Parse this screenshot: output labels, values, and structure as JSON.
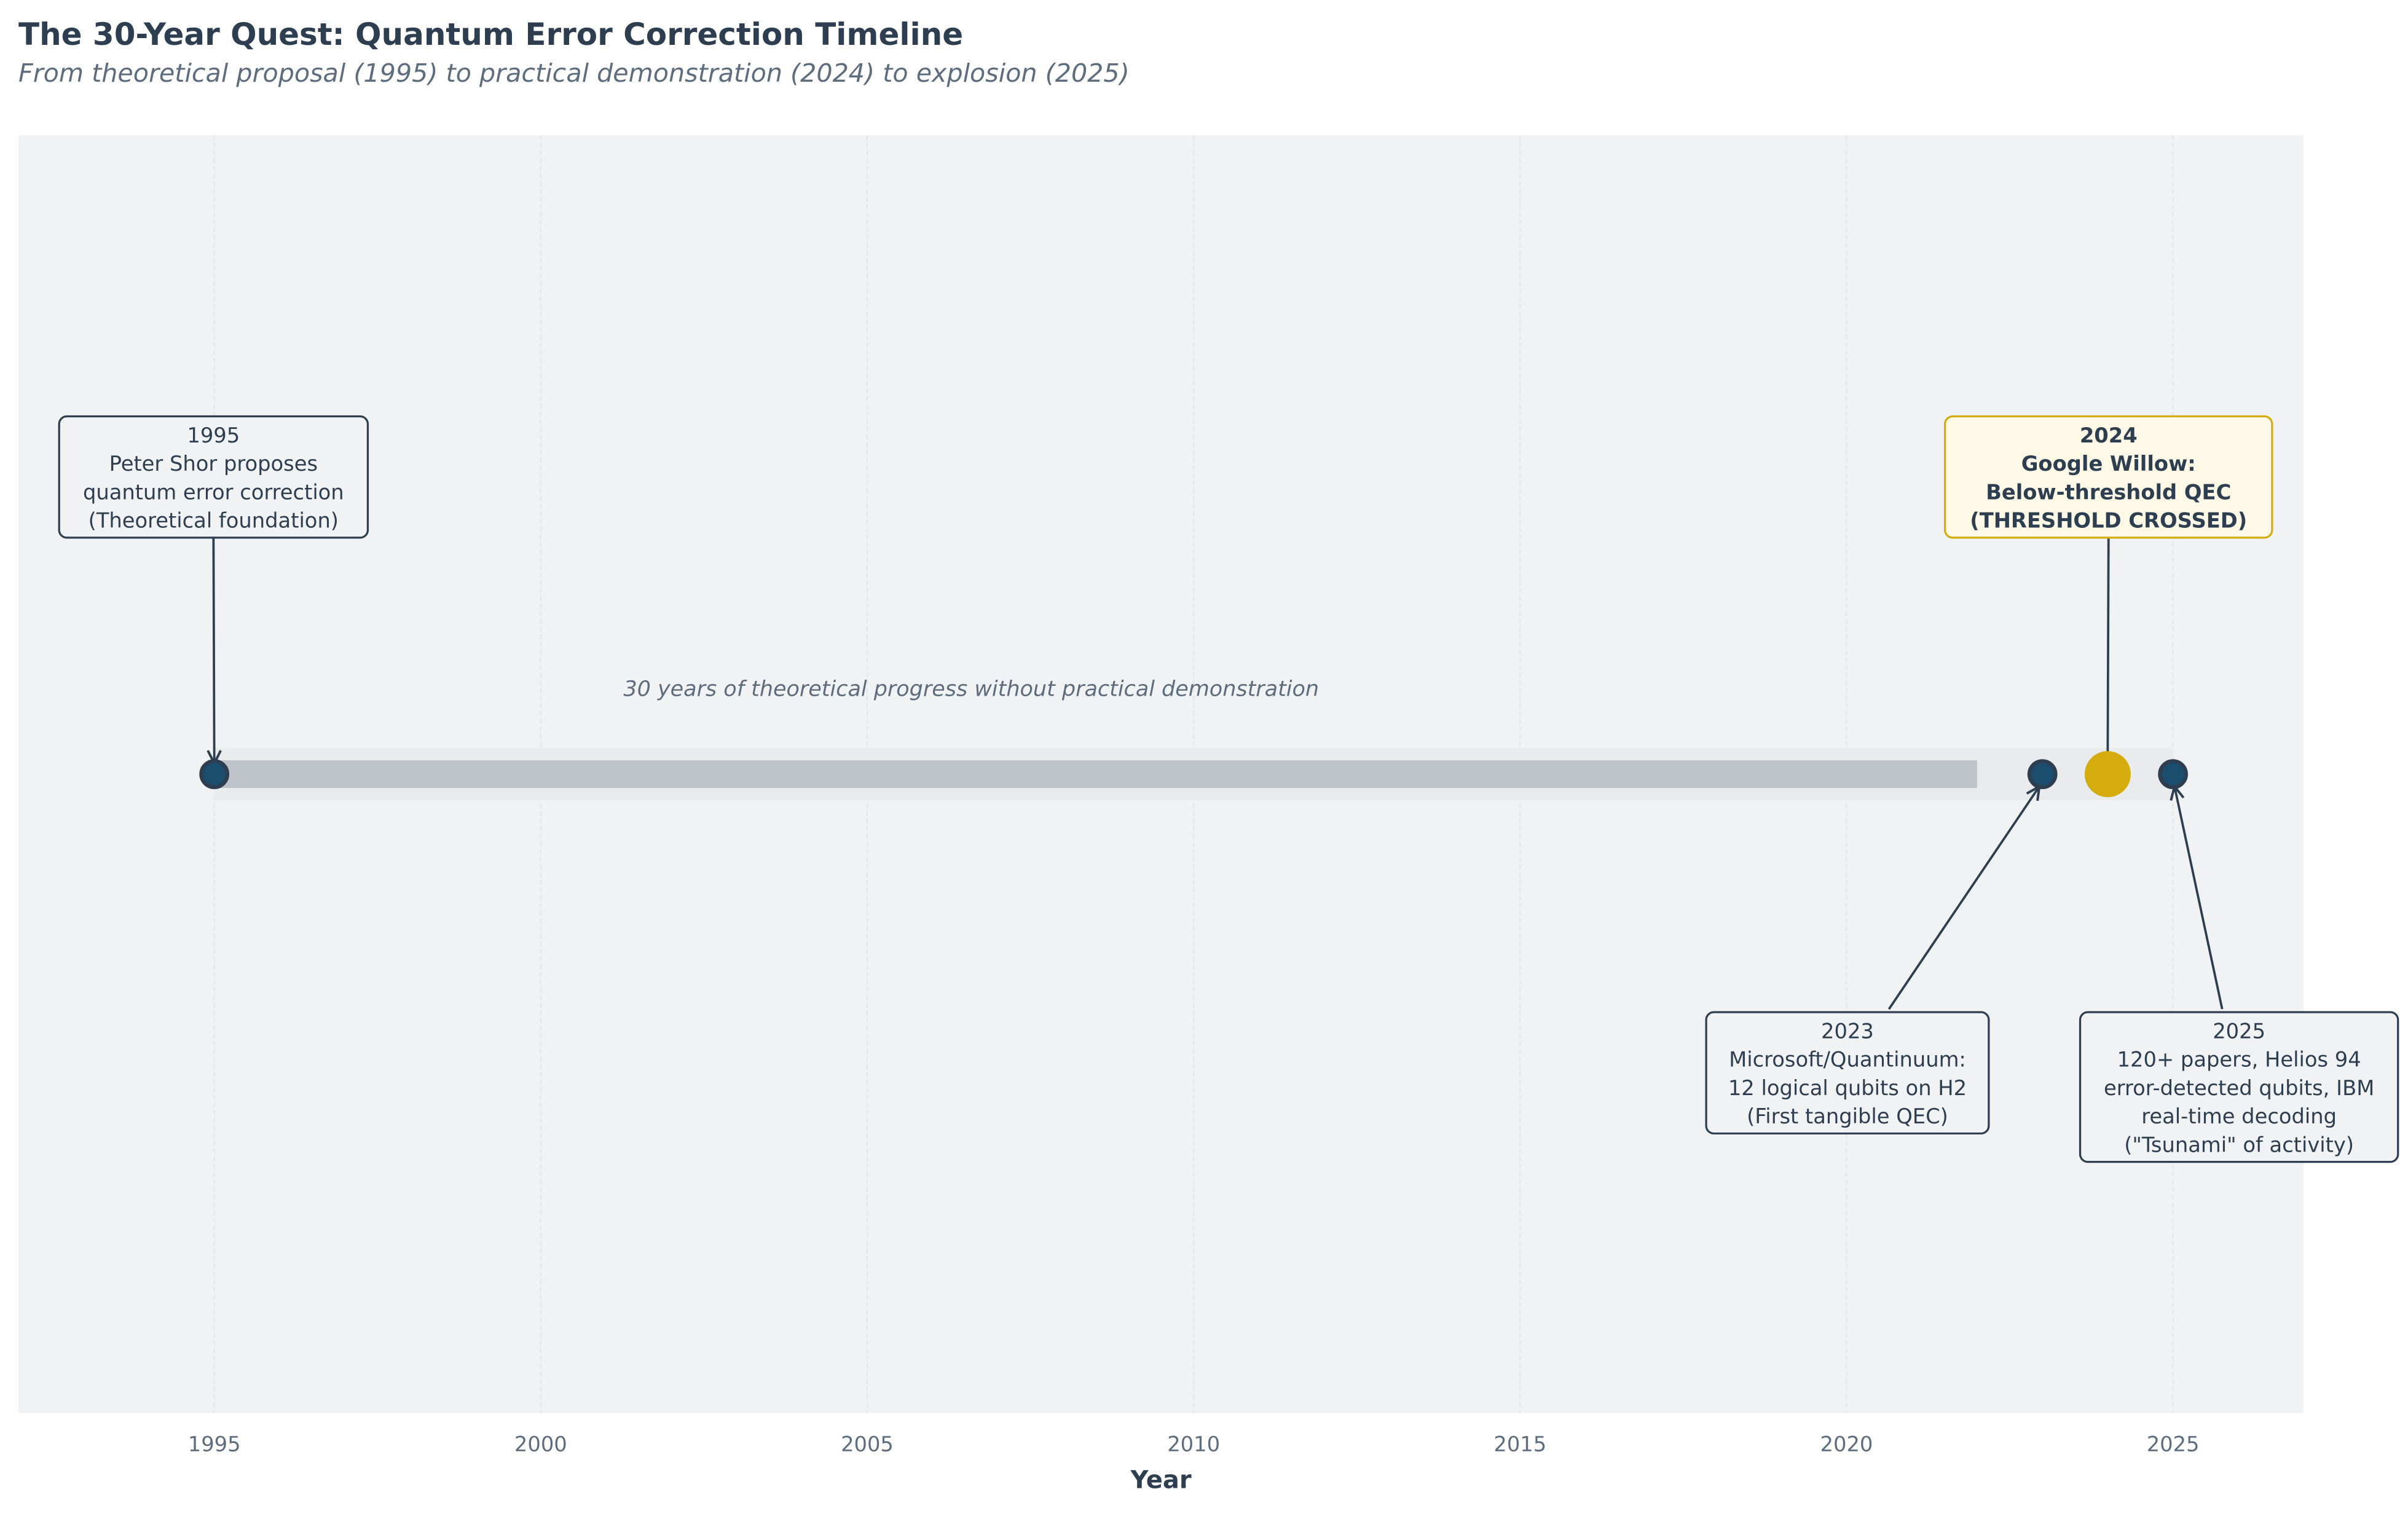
{
  "chart_data": {
    "type": "timeline",
    "title": "The 30-Year Quest: Quantum Error Correction Timeline",
    "subtitle": "From theoretical proposal (1995) to practical demonstration (2024) to explosion (2025)",
    "xlabel": "Year",
    "xlim": [
      1992,
      2027
    ],
    "xticks": [
      1995,
      2000,
      2005,
      2010,
      2015,
      2020,
      2025
    ],
    "grid": true,
    "background_band": {
      "start": 1995,
      "end": 2025
    },
    "progress_bar": {
      "start": 1995,
      "end": 2022,
      "label": "30 years of theoretical progress without practical demonstration"
    },
    "events": [
      {
        "year": 1995,
        "lines": [
          "1995",
          "Peter Shor proposes",
          "quantum error correction",
          "(Theoretical foundation)"
        ],
        "highlight": false,
        "position": "above"
      },
      {
        "year": 2023,
        "lines": [
          "2023",
          "Microsoft/Quantinuum:",
          "12 logical qubits on H2",
          "(First tangible QEC)"
        ],
        "highlight": false,
        "position": "below"
      },
      {
        "year": 2024,
        "lines": [
          "2024",
          "Google Willow:",
          "Below-threshold QEC",
          "(THRESHOLD CROSSED)"
        ],
        "highlight": true,
        "position": "above"
      },
      {
        "year": 2025,
        "lines": [
          "2025",
          "120+ papers, Helios 94",
          "error-detected qubits, IBM",
          "real-time decoding",
          "(\"Tsunami\" of activity)"
        ],
        "highlight": false,
        "position": "below"
      }
    ],
    "colors": {
      "event": "#1a4d6e",
      "edge": "#2c3e50",
      "highlight": "#d4ac0d",
      "highlight_box": "#fef9e7",
      "bar": "#bdc3c9",
      "band": "#e9ebed",
      "plot_bg": "#f1f2f4"
    }
  }
}
